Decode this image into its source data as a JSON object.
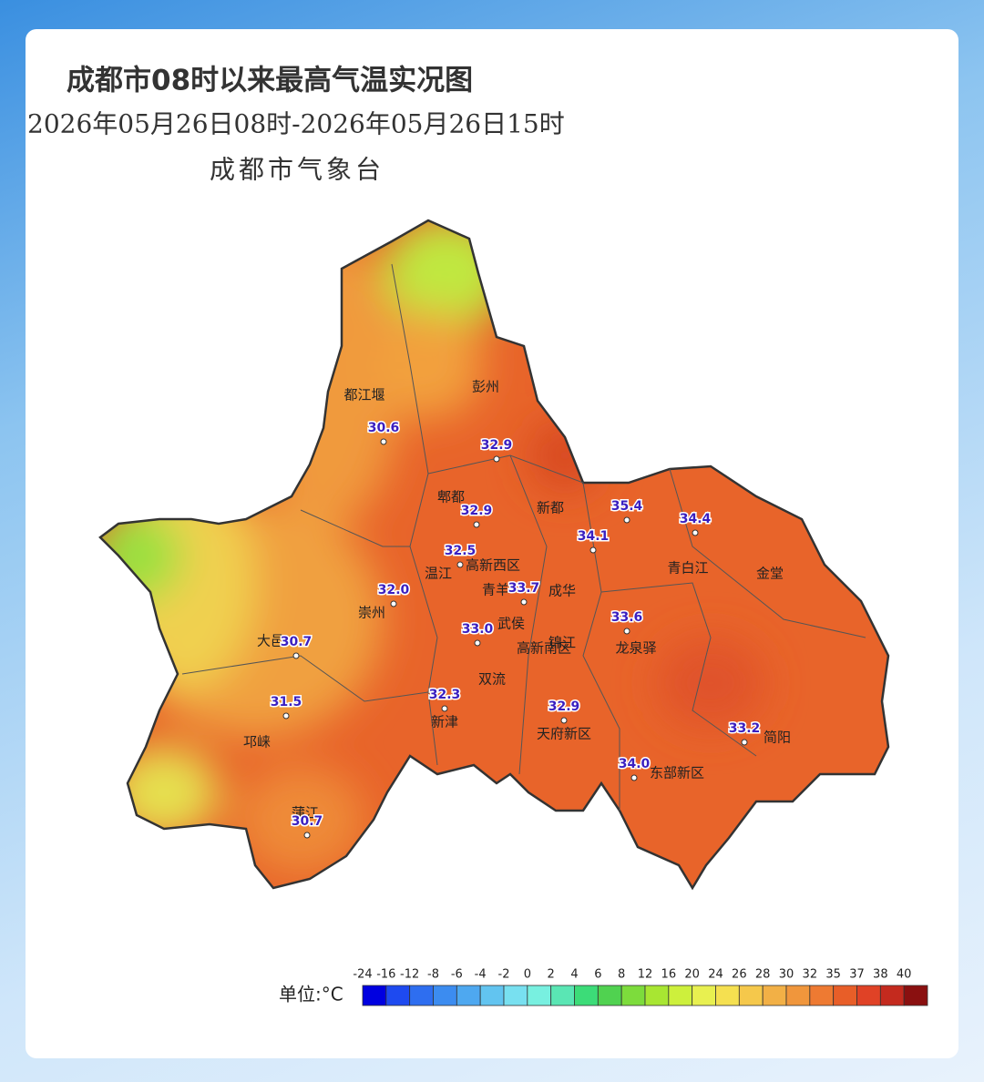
{
  "header": {
    "title": "成都市08时以来最高气温实况图",
    "period": "2026年05月26日08时-2026年05月26日15时",
    "issuer": "成都市气象台"
  },
  "places": [
    "都江堰",
    "彭州",
    "郫都",
    "新都",
    "温江",
    "高新西区",
    "青羊",
    "成华",
    "崇州",
    "武侯",
    "锦江",
    "高新南区",
    "龙泉驿",
    "青白江",
    "金堂",
    "大邑",
    "双流",
    "新津",
    "邛崃",
    "天府新区",
    "东部新区",
    "简阳",
    "蒲江"
  ],
  "stations": [
    "30.6",
    "32.9",
    "32.9",
    "35.4",
    "34.4",
    "34.1",
    "32.5",
    "33.7",
    "32.0",
    "33.6",
    "33.0",
    "30.7",
    "32.3",
    "32.9",
    "31.5",
    "33.2",
    "34.0",
    "30.7"
  ],
  "legend": {
    "unit": "单位:°C",
    "ticks": [
      -24,
      -16,
      -12,
      -8,
      -6,
      -4,
      -2,
      0,
      2,
      4,
      6,
      8,
      12,
      16,
      20,
      24,
      26,
      28,
      30,
      32,
      35,
      37,
      38,
      40
    ],
    "colors": [
      "#0000e0",
      "#1e4af0",
      "#2e6ef0",
      "#3c8cf0",
      "#4ea8f0",
      "#62c4f0",
      "#78e0f0",
      "#78f0e0",
      "#5ae6b4",
      "#3cdc78",
      "#50d250",
      "#7ddc3c",
      "#a8e632",
      "#cdf03c",
      "#e8f050",
      "#f5e050",
      "#f5c84b",
      "#f2b046",
      "#f0963c",
      "#ee7a32",
      "#e85e28",
      "#e04226",
      "#c42a1e",
      "#8a1010"
    ]
  }
}
